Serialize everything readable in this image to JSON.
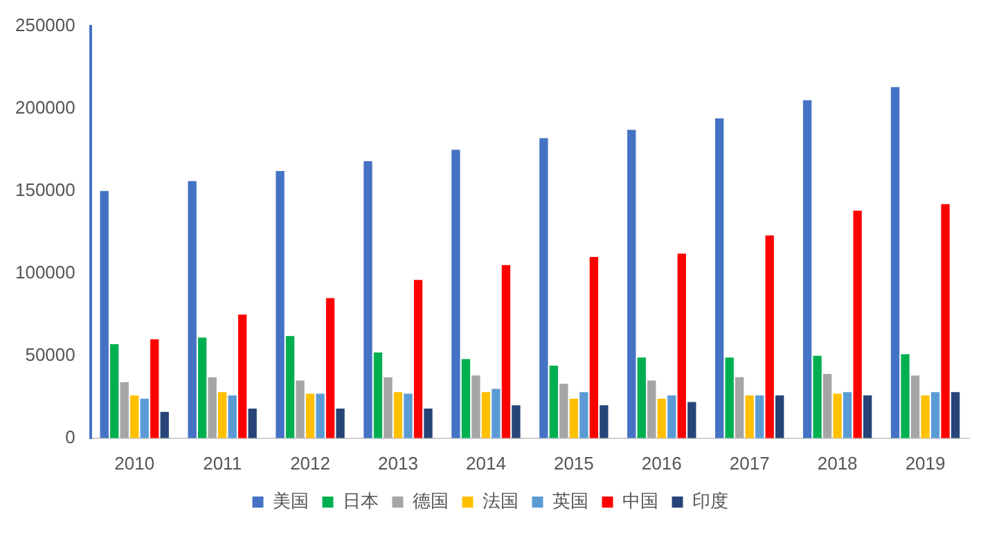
{
  "chart_data": {
    "type": "bar",
    "categories": [
      "2010",
      "2011",
      "2012",
      "2013",
      "2014",
      "2015",
      "2016",
      "2017",
      "2018",
      "2019"
    ],
    "series": [
      {
        "name": "美国",
        "color": "#4472c4",
        "values": [
          150000,
          156000,
          162000,
          168000,
          175000,
          182000,
          187000,
          194000,
          205000,
          213000
        ]
      },
      {
        "name": "日本",
        "color": "#00b050",
        "values": [
          57000,
          61000,
          62000,
          52000,
          48000,
          44000,
          49000,
          49000,
          50000,
          51000
        ]
      },
      {
        "name": "德国",
        "color": "#a5a5a5",
        "values": [
          34000,
          37000,
          35000,
          37000,
          38000,
          33000,
          35000,
          37000,
          39000,
          38000
        ]
      },
      {
        "name": "法国",
        "color": "#ffc000",
        "values": [
          26000,
          28000,
          27000,
          28000,
          28000,
          24000,
          24000,
          26000,
          27000,
          26000
        ]
      },
      {
        "name": "英国",
        "color": "#5b9bd5",
        "values": [
          24000,
          26000,
          27000,
          27000,
          30000,
          28000,
          26000,
          26000,
          28000,
          28000
        ]
      },
      {
        "name": "中国",
        "color": "#ff0000",
        "values": [
          60000,
          75000,
          85000,
          96000,
          105000,
          110000,
          112000,
          123000,
          138000,
          142000
        ]
      },
      {
        "name": "印度",
        "color": "#264478",
        "values": [
          16000,
          18000,
          18000,
          18000,
          20000,
          20000,
          22000,
          26000,
          26000,
          28000
        ]
      }
    ],
    "ylim": [
      0,
      250000
    ],
    "yticks": [
      0,
      50000,
      100000,
      150000,
      200000,
      250000
    ],
    "grid": false,
    "legend": "bottom"
  }
}
